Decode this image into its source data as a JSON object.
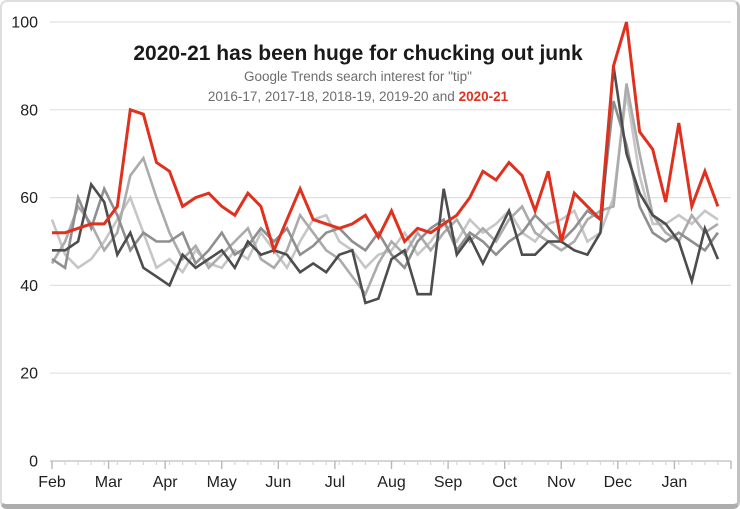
{
  "colors": {
    "accent": "#e0311f",
    "title_text": "#1a1a1a",
    "subtitle_text": "#6d6d6d",
    "grid": "#e0e0e0",
    "axis": "#c9c9c9",
    "tick_minor": "#d6d6d6",
    "tick_major": "#b9b9b9",
    "axis_label": "#1f1f1f"
  },
  "chart_data": {
    "type": "line",
    "title": "2020-21 has been huge for chucking out junk",
    "subtitle": "Google Trends search interest for \"tip\"",
    "series_caption_prefix": "2016-17, 2017-18, 2018-19, 2019-20 and ",
    "series_caption_highlight": "2020-21",
    "x_unit": "weekly",
    "months": [
      "Feb",
      "Mar",
      "Apr",
      "May",
      "Jun",
      "Jul",
      "Aug",
      "Sep",
      "Oct",
      "Nov",
      "Dec",
      "Jan"
    ],
    "weeks_total": 52,
    "ylim": [
      0,
      100
    ],
    "yticks": [
      0,
      20,
      40,
      60,
      80,
      100
    ],
    "grid": "horizontal",
    "legend_position": "none (series named in subtitle, 2020-21 highlighted red)",
    "series": [
      {
        "name": "2016-17",
        "color": "#c6c6c6",
        "values": [
          55,
          47,
          44,
          46,
          50,
          55,
          60,
          52,
          44,
          46,
          43,
          48,
          45,
          44,
          48,
          46,
          52,
          48,
          44,
          50,
          55,
          56,
          50,
          48,
          44,
          47,
          48,
          52,
          47,
          50,
          54,
          50,
          55,
          52,
          54,
          57,
          52,
          50,
          54,
          55,
          57,
          50,
          52,
          60,
          84,
          65,
          54,
          54,
          56,
          54,
          57,
          55
        ]
      },
      {
        "name": "2017-18",
        "color": "#ababab",
        "values": [
          45,
          50,
          58,
          54,
          48,
          52,
          65,
          69,
          60,
          52,
          46,
          49,
          44,
          47,
          50,
          53,
          46,
          44,
          48,
          56,
          52,
          48,
          46,
          42,
          38,
          45,
          50,
          47,
          52,
          48,
          52,
          55,
          50,
          53,
          50,
          55,
          58,
          52,
          50,
          48,
          50,
          55,
          57,
          58,
          86,
          70,
          56,
          52,
          50,
          56,
          52,
          54
        ]
      },
      {
        "name": "2018-19",
        "color": "#8f8f8f",
        "values": [
          46,
          44,
          60,
          53,
          62,
          56,
          48,
          52,
          50,
          50,
          52,
          45,
          48,
          52,
          47,
          49,
          53,
          50,
          53,
          47,
          49,
          52,
          53,
          50,
          48,
          52,
          47,
          44,
          50,
          53,
          55,
          48,
          52,
          50,
          47,
          50,
          52,
          56,
          53,
          50,
          53,
          57,
          55,
          82,
          72,
          58,
          52,
          50,
          52,
          50,
          48,
          52
        ]
      },
      {
        "name": "2019-20",
        "color": "#4d4d4d",
        "values": [
          48,
          48,
          50,
          63,
          59,
          47,
          52,
          44,
          42,
          40,
          47,
          44,
          46,
          48,
          44,
          50,
          47,
          48,
          47,
          43,
          45,
          43,
          47,
          48,
          36,
          37,
          46,
          48,
          38,
          38,
          62,
          47,
          51,
          45,
          51,
          57,
          47,
          47,
          50,
          50,
          48,
          47,
          52,
          90,
          70,
          61,
          56,
          54,
          50,
          41,
          53,
          46
        ]
      },
      {
        "name": "2020-21",
        "color": "#e0311f",
        "values": [
          52,
          52,
          53,
          54,
          54,
          58,
          80,
          79,
          68,
          66,
          58,
          60,
          61,
          58,
          56,
          61,
          58,
          48,
          55,
          62,
          55,
          54,
          53,
          54,
          56,
          51,
          57,
          50,
          53,
          52,
          54,
          56,
          60,
          66,
          64,
          68,
          65,
          57,
          66,
          50,
          61,
          58,
          55,
          90,
          100,
          75,
          71,
          59,
          77,
          58,
          66,
          58
        ]
      }
    ]
  }
}
